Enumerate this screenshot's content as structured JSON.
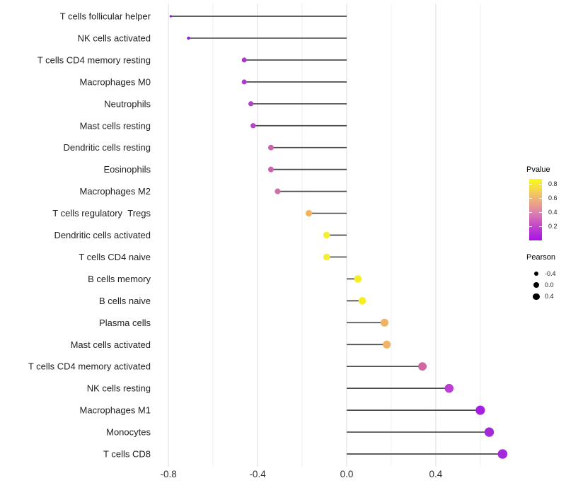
{
  "figure": {
    "background": "#ffffff"
  },
  "chart_data": {
    "type": "lollipop",
    "orientation": "horizontal",
    "title": "",
    "xlabel": "",
    "ylabel": "",
    "x_axis": {
      "ticks": [
        -0.8,
        -0.4,
        0.0,
        0.4
      ],
      "tick_labels": [
        "-0.8",
        "-0.4",
        "0.0",
        "0.4"
      ],
      "minor_ticks": [
        -0.6,
        -0.2,
        0.2,
        0.6
      ],
      "limits": [
        -0.864,
        0.775
      ],
      "grid": true
    },
    "points": [
      {
        "label": "T cells follicular helper",
        "pearson": -0.79,
        "pvalue_approx": 0.001,
        "color": "#7E1BD4"
      },
      {
        "label": "NK cells activated",
        "pearson": -0.71,
        "pvalue_approx": 0.01,
        "color": "#8B20D6"
      },
      {
        "label": "T cells CD4 memory resting",
        "pearson": -0.46,
        "pvalue_approx": 0.06,
        "color": "#AB3BC9"
      },
      {
        "label": "Macrophages M0",
        "pearson": -0.46,
        "pvalue_approx": 0.06,
        "color": "#AB3BC9"
      },
      {
        "label": "Neutrophils",
        "pearson": -0.43,
        "pvalue_approx": 0.08,
        "color": "#B043C7"
      },
      {
        "label": "Mast cells resting",
        "pearson": -0.42,
        "pvalue_approx": 0.09,
        "color": "#B246C5"
      },
      {
        "label": "Dendritic cells resting",
        "pearson": -0.34,
        "pvalue_approx": 0.2,
        "color": "#C962AC"
      },
      {
        "label": "Eosinophils",
        "pearson": -0.34,
        "pvalue_approx": 0.2,
        "color": "#C962AC"
      },
      {
        "label": "Macrophages M2",
        "pearson": -0.31,
        "pvalue_approx": 0.26,
        "color": "#D170A8"
      },
      {
        "label": "T cells regulatory  Tregs",
        "pearson": -0.17,
        "pvalue_approx": 0.58,
        "color": "#F2B45A"
      },
      {
        "label": "Dendritic cells activated",
        "pearson": -0.09,
        "pvalue_approx": 0.78,
        "color": "#F5EE30"
      },
      {
        "label": "T cells CD4 naive",
        "pearson": -0.09,
        "pvalue_approx": 0.78,
        "color": "#F5EE30"
      },
      {
        "label": "B cells memory",
        "pearson": 0.05,
        "pvalue_approx": 0.84,
        "color": "#F6EE22"
      },
      {
        "label": "B cells naive",
        "pearson": 0.07,
        "pvalue_approx": 0.82,
        "color": "#F6EE22"
      },
      {
        "label": "Plasma cells",
        "pearson": 0.17,
        "pvalue_approx": 0.58,
        "color": "#F0B468"
      },
      {
        "label": "Mast cells activated",
        "pearson": 0.18,
        "pvalue_approx": 0.56,
        "color": "#F0B468"
      },
      {
        "label": "T cells CD4 memory activated",
        "pearson": 0.34,
        "pvalue_approx": 0.3,
        "color": "#CE69A3"
      },
      {
        "label": "NK cells resting",
        "pearson": 0.46,
        "pvalue_approx": 0.12,
        "color": "#BC3ED6"
      },
      {
        "label": "Macrophages M1",
        "pearson": 0.6,
        "pvalue_approx": 0.02,
        "color": "#A61FE0"
      },
      {
        "label": "Monocytes",
        "pearson": 0.64,
        "pvalue_approx": 0.01,
        "color": "#A528DB"
      },
      {
        "label": "T cells CD8",
        "pearson": 0.7,
        "pvalue_approx": 0.005,
        "color": "#A428DB"
      }
    ],
    "legend_pvalue": {
      "title": "Pvalue",
      "tick_labels": [
        "0.8",
        "0.6",
        "0.4",
        "0.2"
      ],
      "tick_values": [
        0.8,
        0.6,
        0.4,
        0.2
      ],
      "range": [
        0.0,
        0.87
      ],
      "gradient_bottom_to_top": [
        {
          "color": "#A612E8",
          "pos": 0
        },
        {
          "color": "#C44AC8",
          "pos": 25
        },
        {
          "color": "#DD80AF",
          "pos": 45
        },
        {
          "color": "#E99C8F",
          "pos": 57
        },
        {
          "color": "#F0B873",
          "pos": 70
        },
        {
          "color": "#F6DC46",
          "pos": 85
        },
        {
          "color": "#FAFA14",
          "pos": 100
        }
      ]
    },
    "legend_pearson": {
      "title": "Pearson",
      "dot_color": "#000000",
      "items": [
        {
          "label": "-0.4",
          "value": -0.4,
          "radius": 3.3
        },
        {
          "label": "0.0",
          "value": 0.0,
          "radius": 4.0
        },
        {
          "label": "0.4",
          "value": 0.4,
          "radius": 4.7
        }
      ]
    },
    "style": {
      "stem_color": "#4a4a4a",
      "grid_major_color": "#e3e3e3",
      "grid_minor_color": "#f0f0f0",
      "axis_text_color": "#1f1f1f",
      "tick_text_color": "#303030"
    }
  }
}
